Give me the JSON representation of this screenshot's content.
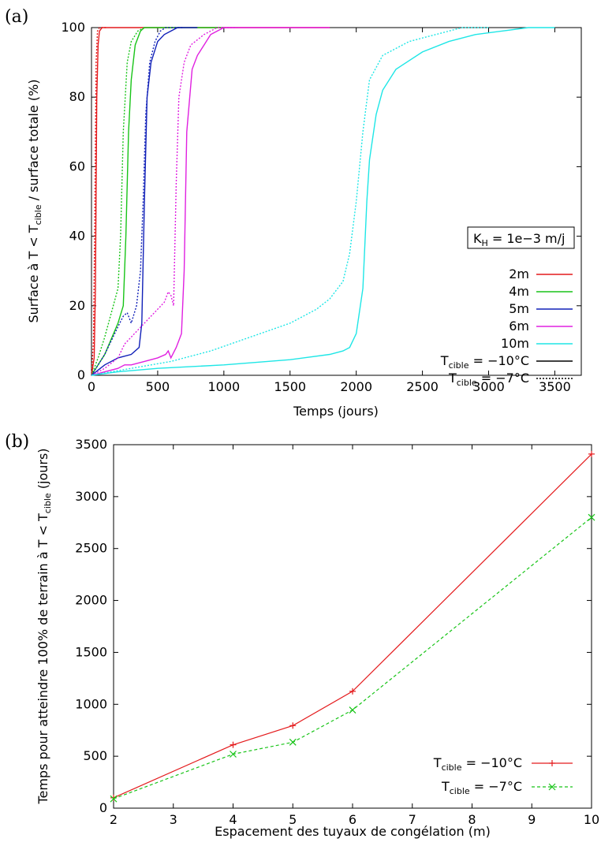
{
  "chart_data": [
    {
      "type": "line",
      "panel_label": "(a)",
      "xlabel": "Temps (jours)",
      "ylabel": {
        "pre": "Surface à T < T",
        "sub": "cible",
        "post": " / surface totale (%)"
      },
      "xlim": [
        0,
        3700
      ],
      "ylim": [
        0,
        100
      ],
      "xticks": [
        0,
        500,
        1000,
        1500,
        2000,
        2500,
        3000,
        3500
      ],
      "yticks": [
        0,
        20,
        40,
        60,
        80,
        100
      ],
      "annotation": {
        "pre": "K",
        "sub": "H",
        "post": " = 1e−3 m/j"
      },
      "legend_position": "bottom-right",
      "legend": [
        {
          "label": "2m",
          "color": "#e41a1c",
          "style": "solid"
        },
        {
          "label": "4m",
          "color": "#18c418",
          "style": "solid"
        },
        {
          "label": "5m",
          "color": "#1020b8",
          "style": "solid"
        },
        {
          "label": "6m",
          "color": "#e020e0",
          "style": "solid"
        },
        {
          "label": "10m",
          "color": "#1ee6e6",
          "style": "solid"
        },
        {
          "pre": "T",
          "sub": "cible",
          "post": " = −10°C",
          "color": "#000000",
          "style": "solid"
        },
        {
          "pre": "T",
          "sub": "cible",
          "post": " = −7°C",
          "color": "#000000",
          "style": "dotted"
        }
      ],
      "series": [
        {
          "spacing": "2m",
          "target": "-10",
          "color": "#e41a1c",
          "style": "solid",
          "points": [
            [
              0,
              0
            ],
            [
              20,
              5
            ],
            [
              30,
              25
            ],
            [
              40,
              80
            ],
            [
              50,
              95
            ],
            [
              60,
              99
            ],
            [
              80,
              100
            ],
            [
              1800,
              100
            ]
          ]
        },
        {
          "spacing": "2m",
          "target": "-7",
          "color": "#e41a1c",
          "style": "dotted",
          "points": [
            [
              0,
              0
            ],
            [
              15,
              10
            ],
            [
              25,
              45
            ],
            [
              35,
              90
            ],
            [
              45,
              99
            ],
            [
              60,
              100
            ],
            [
              120,
              100
            ]
          ]
        },
        {
          "spacing": "4m",
          "target": "-10",
          "color": "#18c418",
          "style": "solid",
          "points": [
            [
              0,
              0
            ],
            [
              100,
              6
            ],
            [
              200,
              15
            ],
            [
              240,
              20
            ],
            [
              260,
              40
            ],
            [
              280,
              70
            ],
            [
              300,
              85
            ],
            [
              330,
              95
            ],
            [
              370,
              99
            ],
            [
              400,
              100
            ],
            [
              1000,
              100
            ]
          ]
        },
        {
          "spacing": "4m",
          "target": "-7",
          "color": "#18c418",
          "style": "dotted",
          "points": [
            [
              0,
              0
            ],
            [
              50,
              5
            ],
            [
              100,
              11
            ],
            [
              150,
              18
            ],
            [
              200,
              25
            ],
            [
              220,
              40
            ],
            [
              240,
              70
            ],
            [
              270,
              90
            ],
            [
              300,
              96
            ],
            [
              350,
              99
            ],
            [
              400,
              100
            ]
          ]
        },
        {
          "spacing": "5m",
          "target": "-10",
          "color": "#1020b8",
          "style": "solid",
          "points": [
            [
              0,
              0
            ],
            [
              100,
              3
            ],
            [
              200,
              5
            ],
            [
              300,
              6
            ],
            [
              360,
              8
            ],
            [
              380,
              15
            ],
            [
              400,
              50
            ],
            [
              420,
              80
            ],
            [
              450,
              90
            ],
            [
              500,
              96
            ],
            [
              550,
              98
            ],
            [
              600,
              99
            ],
            [
              650,
              100
            ],
            [
              800,
              100
            ]
          ]
        },
        {
          "spacing": "5m",
          "target": "-7",
          "color": "#1020b8",
          "style": "dotted",
          "points": [
            [
              0,
              0
            ],
            [
              50,
              3
            ],
            [
              100,
              6
            ],
            [
              150,
              10
            ],
            [
              200,
              14
            ],
            [
              240,
              17
            ],
            [
              270,
              18
            ],
            [
              300,
              15
            ],
            [
              340,
              20
            ],
            [
              370,
              30
            ],
            [
              390,
              50
            ],
            [
              410,
              75
            ],
            [
              440,
              90
            ],
            [
              480,
              96
            ],
            [
              520,
              99
            ],
            [
              560,
              100
            ],
            [
              700,
              100
            ]
          ]
        },
        {
          "spacing": "6m",
          "target": "-10",
          "color": "#e020e0",
          "style": "solid",
          "points": [
            [
              0,
              0
            ],
            [
              100,
              1
            ],
            [
              200,
              2
            ],
            [
              250,
              3
            ],
            [
              300,
              3
            ],
            [
              400,
              4
            ],
            [
              500,
              5
            ],
            [
              560,
              6
            ],
            [
              580,
              7
            ],
            [
              600,
              5
            ],
            [
              640,
              8
            ],
            [
              660,
              10
            ],
            [
              680,
              12
            ],
            [
              700,
              30
            ],
            [
              720,
              70
            ],
            [
              760,
              88
            ],
            [
              800,
              92
            ],
            [
              850,
              95
            ],
            [
              900,
              98
            ],
            [
              1000,
              100
            ],
            [
              1800,
              100
            ]
          ]
        },
        {
          "spacing": "6m",
          "target": "-7",
          "color": "#e020e0",
          "style": "dotted",
          "points": [
            [
              0,
              0
            ],
            [
              100,
              2
            ],
            [
              200,
              5
            ],
            [
              250,
              9
            ],
            [
              300,
              11
            ],
            [
              350,
              13
            ],
            [
              400,
              15
            ],
            [
              450,
              17
            ],
            [
              500,
              19
            ],
            [
              550,
              21
            ],
            [
              580,
              24
            ],
            [
              600,
              23
            ],
            [
              620,
              20
            ],
            [
              640,
              55
            ],
            [
              660,
              80
            ],
            [
              700,
              90
            ],
            [
              750,
              95
            ],
            [
              850,
              98
            ],
            [
              950,
              100
            ],
            [
              1100,
              100
            ]
          ]
        },
        {
          "spacing": "10m",
          "target": "-10",
          "color": "#1ee6e6",
          "style": "solid",
          "points": [
            [
              0,
              0
            ],
            [
              200,
              1
            ],
            [
              500,
              2
            ],
            [
              1000,
              3
            ],
            [
              1500,
              4.5
            ],
            [
              1800,
              6
            ],
            [
              1900,
              7
            ],
            [
              1950,
              8
            ],
            [
              2000,
              12
            ],
            [
              2050,
              25
            ],
            [
              2080,
              50
            ],
            [
              2100,
              62
            ],
            [
              2150,
              75
            ],
            [
              2200,
              82
            ],
            [
              2300,
              88
            ],
            [
              2500,
              93
            ],
            [
              2700,
              96
            ],
            [
              2900,
              98
            ],
            [
              3100,
              99
            ],
            [
              3300,
              100
            ],
            [
              3500,
              100
            ]
          ]
        },
        {
          "spacing": "10m",
          "target": "-7",
          "color": "#1ee6e6",
          "style": "dotted",
          "points": [
            [
              0,
              0
            ],
            [
              300,
              2
            ],
            [
              600,
              4
            ],
            [
              900,
              7
            ],
            [
              1200,
              11
            ],
            [
              1500,
              15
            ],
            [
              1700,
              19
            ],
            [
              1800,
              22
            ],
            [
              1900,
              27
            ],
            [
              1950,
              35
            ],
            [
              2000,
              50
            ],
            [
              2050,
              70
            ],
            [
              2100,
              85
            ],
            [
              2200,
              92
            ],
            [
              2400,
              96
            ],
            [
              2600,
              98
            ],
            [
              2800,
              100
            ],
            [
              3000,
              100
            ]
          ]
        }
      ]
    },
    {
      "type": "line",
      "panel_label": "(b)",
      "xlabel": "Espacement des tuyaux de congélation (m)",
      "ylabel": {
        "pre": "Temps pour atteindre 100% de terrain à T < T",
        "sub": "cible",
        "post": " (jours)"
      },
      "xlim": [
        2,
        10
      ],
      "ylim": [
        0,
        3500
      ],
      "xticks": [
        2,
        3,
        4,
        5,
        6,
        7,
        8,
        9,
        10
      ],
      "yticks": [
        0,
        500,
        1000,
        1500,
        2000,
        2500,
        3000,
        3500
      ],
      "legend_position": "bottom-right",
      "categories_x": [
        2,
        4,
        5,
        6,
        10
      ],
      "series": [
        {
          "legend": {
            "pre": "T",
            "sub": "cible",
            "post": " = −10°C"
          },
          "color": "#e41a1c",
          "style": "solid",
          "marker": "+",
          "values": [
            100,
            610,
            795,
            1125,
            3410
          ]
        },
        {
          "legend": {
            "pre": "T",
            "sub": "cible",
            "post": " = −7°C"
          },
          "color": "#18c418",
          "style": "dashed",
          "marker": "x",
          "values": [
            90,
            520,
            635,
            945,
            2800
          ]
        }
      ]
    }
  ]
}
